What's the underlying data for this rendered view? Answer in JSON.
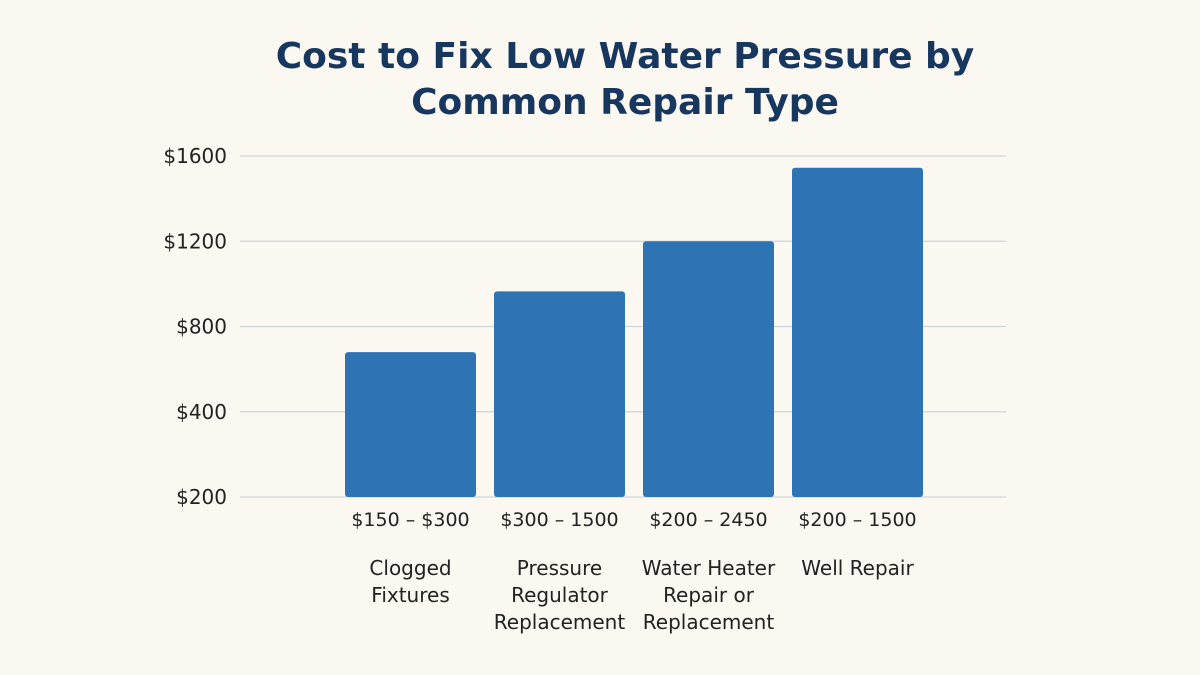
{
  "chart_data": {
    "type": "bar",
    "title": "Cost to Fix Low Water Pressure by Common Repair Type",
    "xlabel": "",
    "ylabel": "",
    "categories": [
      "Clogged Fixtures",
      "Pressure Regulator Replacement",
      "Water Heater Repair or Replacement",
      "Well Repair"
    ],
    "range_labels": [
      "$150 – $300",
      "$300 – 1500",
      "$200 – 2450",
      "$200 – 1500"
    ],
    "values": [
      680,
      965,
      1200,
      1545
    ],
    "y_ticks": [
      {
        "value": 200,
        "label": "$200"
      },
      {
        "value": 400,
        "label": "$400"
      },
      {
        "value": 800,
        "label": "$800"
      },
      {
        "value": 1200,
        "label": "$1200"
      },
      {
        "value": 1600,
        "label": "$1600"
      }
    ],
    "grid": true,
    "legend": "none",
    "bar_color": "#2e74b5",
    "title_color": "#17375e",
    "background_color": "#fbf8f2"
  }
}
